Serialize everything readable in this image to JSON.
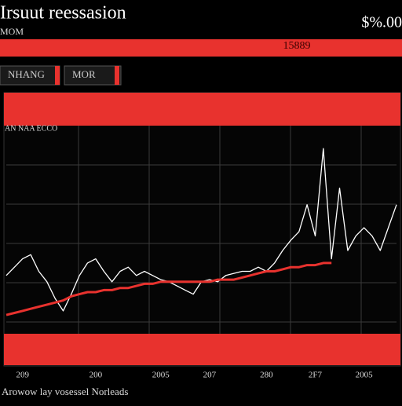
{
  "header": {
    "title": "Irsuut reessasion",
    "subtitle": "MOM",
    "price": "$%.00",
    "banner": "15889"
  },
  "buttons": [
    "NHANG",
    "MOR"
  ],
  "footer": "Arowow lay vosessel Norleads",
  "chart_data": {
    "type": "line",
    "title": "AN NAA ECCO",
    "categories": [
      null,
      null,
      "209",
      null,
      null,
      null,
      null,
      null,
      null,
      null,
      null,
      "200",
      null,
      null,
      null,
      null,
      null,
      null,
      null,
      "2005",
      null,
      null,
      null,
      null,
      null,
      "207",
      null,
      null,
      null,
      null,
      null,
      null,
      "280",
      null,
      null,
      null,
      null,
      null,
      "2F7",
      null,
      null,
      null,
      null,
      null,
      "2005",
      null,
      null,
      null,
      null
    ],
    "ylim": [
      0,
      100
    ],
    "grid": true,
    "series": [
      {
        "color": "#ffffff",
        "values": [
          28,
          32,
          36,
          38,
          30,
          25,
          17,
          11,
          19,
          28,
          34,
          36,
          30,
          25,
          30,
          32,
          28,
          30,
          28,
          26,
          25,
          23,
          21,
          19,
          25,
          26,
          25,
          28,
          29,
          30,
          30,
          32,
          30,
          34,
          40,
          45,
          49,
          62,
          47,
          89,
          36,
          70,
          40,
          47,
          51,
          47,
          40,
          51,
          62
        ]
      },
      {
        "color": "#e8322e",
        "values": [
          9,
          10,
          11,
          12,
          13,
          14,
          15,
          16,
          18,
          19,
          20,
          20,
          21,
          21,
          22,
          22,
          23,
          24,
          24,
          25,
          25,
          25,
          25,
          25,
          25,
          25,
          26,
          26,
          26,
          27,
          28,
          29,
          30,
          30,
          31,
          32,
          32,
          33,
          33,
          34,
          34,
          null,
          null,
          null,
          null,
          null,
          null,
          null,
          null
        ]
      }
    ]
  }
}
